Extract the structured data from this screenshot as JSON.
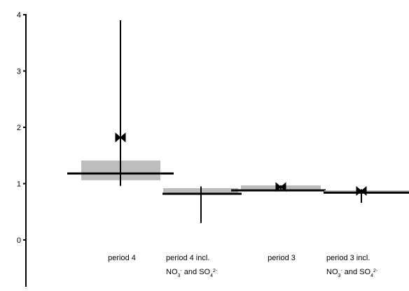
{
  "chart_data": {
    "type": "box",
    "title": "",
    "xlabel": "",
    "ylabel": "",
    "ylim": [
      -0.8,
      4.1
    ],
    "yticks": [
      0,
      1,
      2,
      3,
      4
    ],
    "yticks_text": [
      "0",
      "1",
      "2",
      "3",
      "4"
    ],
    "grid": false,
    "categories": [
      {
        "label": "period 4",
        "label2": ""
      },
      {
        "label": "period 4 incl.",
        "label2": "NO3- and SO42-"
      },
      {
        "label": "period 3",
        "label2": ""
      },
      {
        "label": "period 3 incl.",
        "label2": "NO3- and SO42-"
      }
    ],
    "series": [
      {
        "box_low": 1.06,
        "box_high": 1.41,
        "median": 1.18,
        "whisker_low": 0.96,
        "whisker_high": 3.9,
        "marker": 1.82
      },
      {
        "box_low": 0.84,
        "box_high": 0.92,
        "median": 0.82,
        "whisker_low": 0.3,
        "whisker_high": 0.95,
        "marker": null
      },
      {
        "box_low": 0.9,
        "box_high": 0.97,
        "median": 0.88,
        "whisker_low": 0.88,
        "whisker_high": 0.97,
        "marker": 0.94
      },
      {
        "box_low": 0.86,
        "box_high": 0.88,
        "median": 0.84,
        "whisker_low": 0.66,
        "whisker_high": 0.9,
        "marker": 0.87
      }
    ],
    "colors": {
      "box": "#bdbdbd",
      "line": "#000000"
    }
  }
}
